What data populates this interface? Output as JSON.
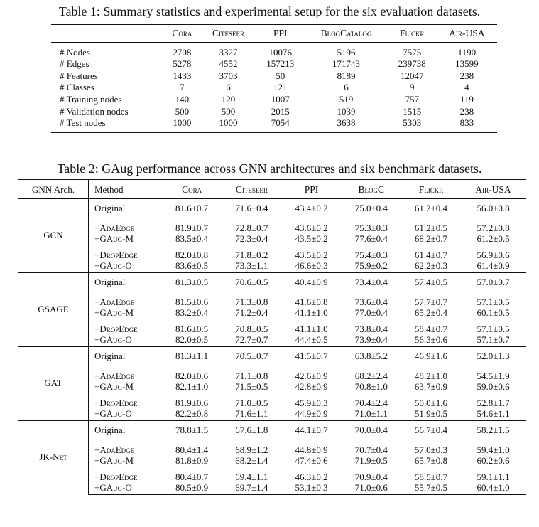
{
  "table1": {
    "caption": "Table 1: Summary statistics and experimental setup for the six evaluation datasets.",
    "columns": [
      "",
      "Cora",
      "Citeseer",
      "PPI",
      "BlogCatalog",
      "Flickr",
      "Air-USA"
    ],
    "rows": [
      [
        "# Nodes",
        "2708",
        "3327",
        "10076",
        "5196",
        "7575",
        "1190"
      ],
      [
        "# Edges",
        "5278",
        "4552",
        "157213",
        "171743",
        "239738",
        "13599"
      ],
      [
        "# Features",
        "1433",
        "3703",
        "50",
        "8189",
        "12047",
        "238"
      ],
      [
        "# Classes",
        "7",
        "6",
        "121",
        "6",
        "9",
        "4"
      ],
      [
        "# Training nodes",
        "140",
        "120",
        "1007",
        "519",
        "757",
        "119"
      ],
      [
        "# Validation nodes",
        "500",
        "500",
        "2015",
        "1039",
        "1515",
        "238"
      ],
      [
        "# Test nodes",
        "1000",
        "1000",
        "7054",
        "3638",
        "5303",
        "833"
      ]
    ]
  },
  "table2": {
    "caption": "Table 2: GAug performance across GNN architectures and six benchmark datasets.",
    "columns": [
      "GNN Arch.",
      "Method",
      "Cora",
      "Citeseer",
      "PPI",
      "BlogC",
      "Flickr",
      "Air-USA"
    ],
    "groups": [
      {
        "arch": "GCN",
        "rows": [
          {
            "method": "Original",
            "values": [
              "81.6±0.7",
              "71.6±0.4",
              "43.4±0.2",
              "75.0±0.4",
              "61.2±0.4",
              "56.0±0.8"
            ]
          },
          {
            "method": "+AdaEdge",
            "values": [
              "81.9±0.7",
              "72.8±0.7",
              "43.6±0.2",
              "75.3±0.3",
              "61.2±0.5",
              "57.2±0.8"
            ]
          },
          {
            "method": "+GAug-M",
            "values": [
              "83.5±0.4",
              "72.3±0.4",
              "43.5±0.2",
              "77.6±0.4",
              "68.2±0.7",
              "61.2±0.5"
            ]
          },
          {
            "method": "+DropEdge",
            "values": [
              "82.0±0.8",
              "71.8±0.2",
              "43.5±0.2",
              "75.4±0.3",
              "61.4±0.7",
              "56.9±0.6"
            ]
          },
          {
            "method": "+GAug-O",
            "values": [
              "83.6±0.5",
              "73.3±1.1",
              "46.6±0.3",
              "75.9±0.2",
              "62.2±0.3",
              "61.4±0.9"
            ]
          }
        ]
      },
      {
        "arch": "GSAGE",
        "rows": [
          {
            "method": "Original",
            "values": [
              "81.3±0.5",
              "70.6±0.5",
              "40.4±0.9",
              "73.4±0.4",
              "57.4±0.5",
              "57.0±0.7"
            ]
          },
          {
            "method": "+AdaEdge",
            "values": [
              "81.5±0.6",
              "71.3±0.8",
              "41.6±0.8",
              "73.6±0.4",
              "57.7±0.7",
              "57.1±0.5"
            ]
          },
          {
            "method": "+GAug-M",
            "values": [
              "83.2±0.4",
              "71.2±0.4",
              "41.1±1.0",
              "77.0±0.4",
              "65.2±0.4",
              "60.1±0.5"
            ]
          },
          {
            "method": "+DropEdge",
            "values": [
              "81.6±0.5",
              "70.8±0.5",
              "41.1±1.0",
              "73.8±0.4",
              "58.4±0.7",
              "57.1±0.5"
            ]
          },
          {
            "method": "+GAug-O",
            "values": [
              "82.0±0.5",
              "72.7±0.7",
              "44.4±0.5",
              "73.9±0.4",
              "56.3±0.6",
              "57.1±0.7"
            ]
          }
        ]
      },
      {
        "arch": "GAT",
        "rows": [
          {
            "method": "Original",
            "values": [
              "81.3±1.1",
              "70.5±0.7",
              "41.5±0.7",
              "63.8±5.2",
              "46.9±1.6",
              "52.0±1.3"
            ]
          },
          {
            "method": "+AdaEdge",
            "values": [
              "82.0±0.6",
              "71.1±0.8",
              "42.6±0.9",
              "68.2±2.4",
              "48.2±1.0",
              "54.5±1.9"
            ]
          },
          {
            "method": "+GAug-M",
            "values": [
              "82.1±1.0",
              "71.5±0.5",
              "42.8±0.9",
              "70.8±1.0",
              "63.7±0.9",
              "59.0±0.6"
            ]
          },
          {
            "method": "+DropEdge",
            "values": [
              "81.9±0.6",
              "71.0±0.5",
              "45.9±0.3",
              "70.4±2.4",
              "50.0±1.6",
              "52.8±1.7"
            ]
          },
          {
            "method": "+GAug-O",
            "values": [
              "82.2±0.8",
              "71.6±1.1",
              "44.9±0.9",
              "71.0±1.1",
              "51.9±0.5",
              "54.6±1.1"
            ]
          }
        ]
      },
      {
        "arch": "JK-Net",
        "rows": [
          {
            "method": "Original",
            "values": [
              "78.8±1.5",
              "67.6±1.8",
              "44.1±0.7",
              "70.0±0.4",
              "56.7±0.4",
              "58.2±1.5"
            ]
          },
          {
            "method": "+AdaEdge",
            "values": [
              "80.4±1.4",
              "68.9±1.2",
              "44.8±0.9",
              "70.7±0.4",
              "57.0±0.3",
              "59.4±1.0"
            ]
          },
          {
            "method": "+GAug-M",
            "values": [
              "81.8±0.9",
              "68.2±1.4",
              "47.4±0.6",
              "71.9±0.5",
              "65.7±0.8",
              "60.2±0.6"
            ]
          },
          {
            "method": "+DropEdge",
            "values": [
              "80.4±0.7",
              "69.4±1.1",
              "46.3±0.2",
              "70.9±0.4",
              "58.5±0.7",
              "59.1±1.1"
            ]
          },
          {
            "method": "+GAug-O",
            "values": [
              "80.5±0.9",
              "69.7±1.4",
              "53.1±0.3",
              "71.0±0.6",
              "55.7±0.5",
              "60.4±1.0"
            ]
          }
        ]
      }
    ]
  }
}
